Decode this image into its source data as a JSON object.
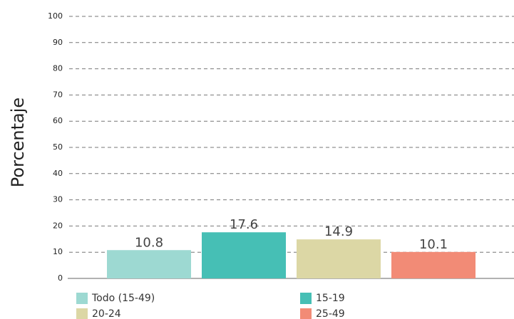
{
  "chart_data": {
    "type": "bar",
    "y_label": "Porcentaje",
    "series": [
      {
        "name": "Todo (15-49)",
        "color": "#9dd9d2",
        "values": [
          10.8
        ]
      },
      {
        "name": "15-19",
        "color": "#46bfb5",
        "values": [
          17.6
        ]
      },
      {
        "name": "20-24",
        "color": "#dcd7a5",
        "values": [
          14.9
        ]
      },
      {
        "name": "25-49",
        "color": "#f28b76",
        "values": [
          10.1
        ]
      }
    ],
    "ylim": [
      0,
      100
    ],
    "yticks": [
      0,
      10,
      20,
      30,
      40,
      50,
      60,
      70,
      80,
      90,
      100
    ],
    "grid": true,
    "legend": "bottom"
  }
}
